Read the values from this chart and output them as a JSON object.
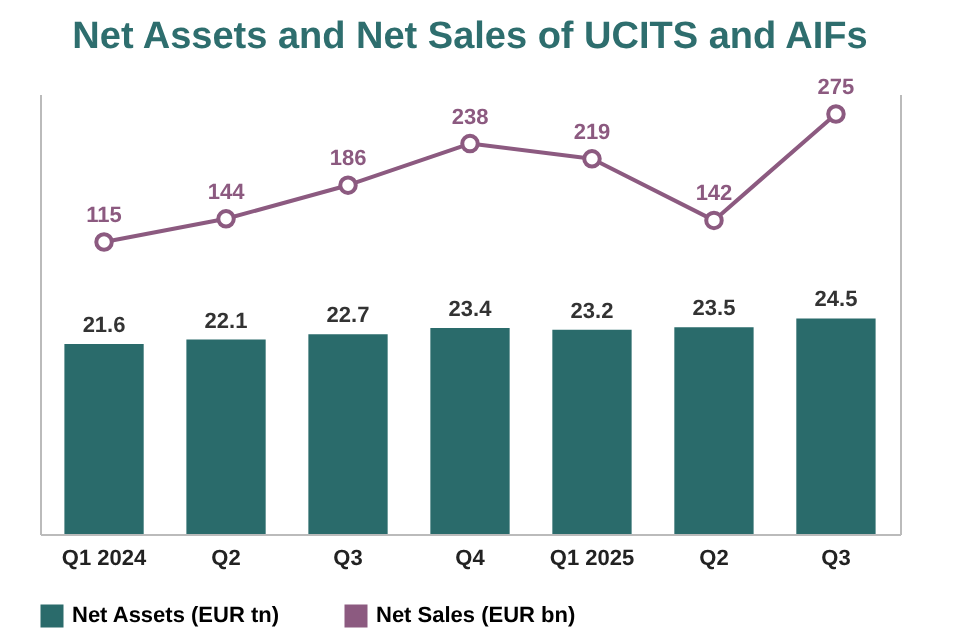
{
  "chart_data": {
    "type": "bar",
    "title": "Net Assets and Net Sales of UCITS and AIFs",
    "categories": [
      "Q1 2024",
      "Q2",
      "Q3",
      "Q4",
      "Q1 2025",
      "Q2",
      "Q3"
    ],
    "series": [
      {
        "name": "Net Assets (EUR tn)",
        "color": "#2a6b6b",
        "values": [
          21.6,
          22.1,
          22.7,
          23.4,
          23.2,
          23.5,
          24.5
        ]
      },
      {
        "name": "Net Sales (EUR bn)",
        "type": "line",
        "axis": "y2",
        "color": "#8c5a80",
        "values": [
          115,
          144,
          186,
          238,
          219,
          142,
          275
        ]
      }
    ],
    "ylim": [
      0,
      50
    ],
    "y2lim": [
      -250,
      300
    ],
    "data_labels": true,
    "tick_labels": "x",
    "legend": "bottom",
    "marker": "circle"
  }
}
